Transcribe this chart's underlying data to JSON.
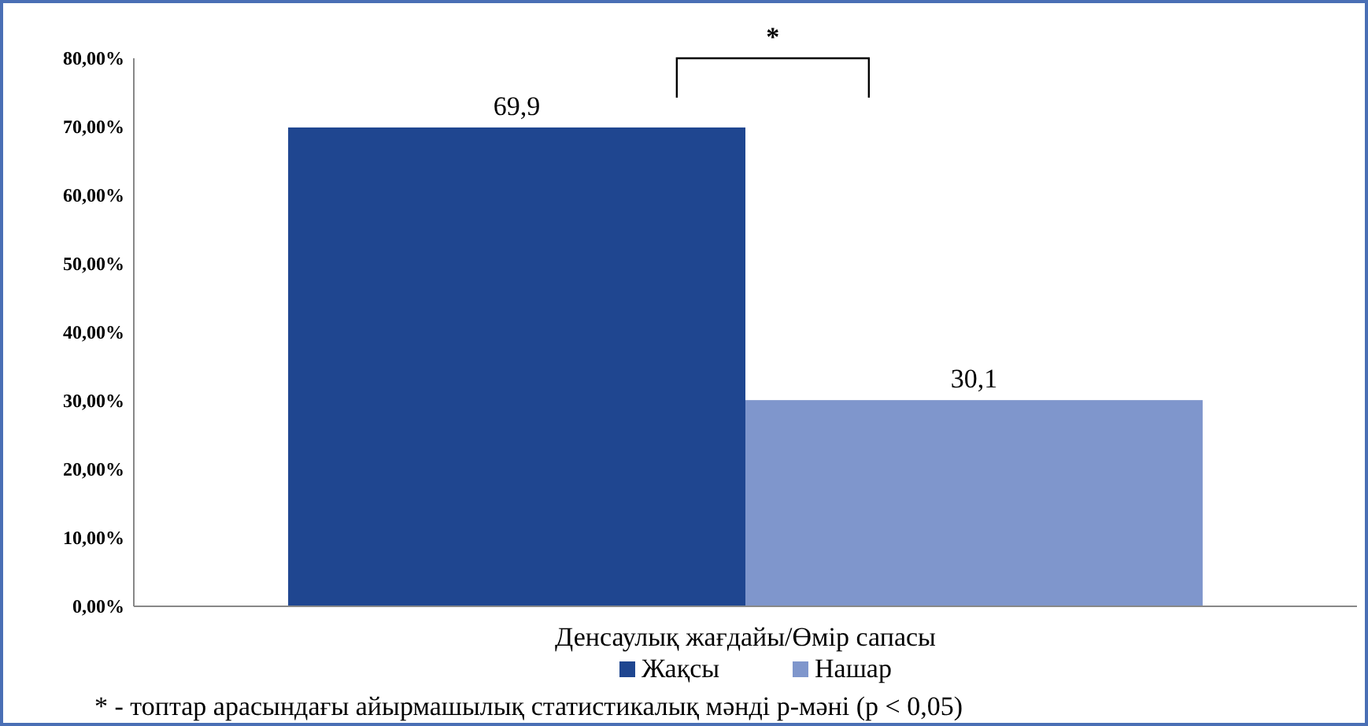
{
  "chart_data": {
    "type": "bar",
    "categories": [
      "Денсаулық жағдайы/Өмір сапасы"
    ],
    "series": [
      {
        "name": "Жақсы",
        "color": "#1f4690",
        "values": [
          69.9
        ],
        "value_labels": [
          "69,9"
        ]
      },
      {
        "name": "Нашар",
        "color": "#7f96cc",
        "values": [
          30.1
        ],
        "value_labels": [
          "30,1"
        ]
      }
    ],
    "ylim": [
      0,
      80
    ],
    "yticks": [
      {
        "value": 0,
        "label": "0,00%"
      },
      {
        "value": 10,
        "label": "10,00%"
      },
      {
        "value": 20,
        "label": "20,00%"
      },
      {
        "value": 30,
        "label": "30,00%"
      },
      {
        "value": 40,
        "label": "40,00%"
      },
      {
        "value": 50,
        "label": "50,00%"
      },
      {
        "value": 60,
        "label": "60,00%"
      },
      {
        "value": 70,
        "label": "70,00%"
      },
      {
        "value": 80,
        "label": "80,00%"
      }
    ],
    "grid": false,
    "legend": "bottom",
    "annotations": [
      "*",
      "* - топтар арасындағы айырмашылық статистикалық мәнді p-мәні (p < 0,05)"
    ]
  }
}
